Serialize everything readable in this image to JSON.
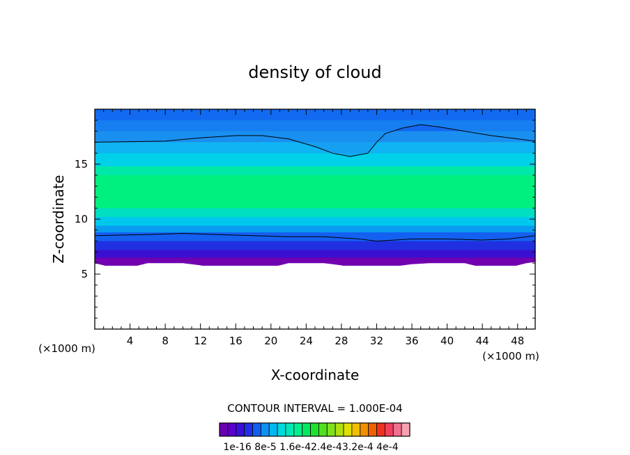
{
  "chart_data": {
    "type": "heatmap",
    "title": "density of cloud",
    "xlabel": "X-coordinate",
    "ylabel": "Z-coordinate",
    "x_unit": "(×1000 m)",
    "z_unit": "(×1000 m)",
    "xlim": [
      0,
      50
    ],
    "ylim": [
      0,
      20
    ],
    "x_ticks": [
      4,
      8,
      12,
      16,
      20,
      24,
      28,
      32,
      36,
      40,
      44,
      48
    ],
    "y_ticks": [
      5,
      10,
      15
    ],
    "contour_interval_text": "CONTOUR INTERVAL = 1.000E-04",
    "colorbar": {
      "labels": [
        "1e-16",
        "8e-5",
        "1.6e-4",
        "2.4e-4",
        "3.2e-4",
        "4e-4"
      ],
      "label_text": "1e-16  8e-5  1.6e-42.4e-43.2e-4  4e-4",
      "colors": [
        "#6b00b0",
        "#5a00c8",
        "#3a10d8",
        "#2030e8",
        "#1060f0",
        "#1090f0",
        "#00b8f0",
        "#00d8e0",
        "#00e8b8",
        "#00f090",
        "#00e860",
        "#20e030",
        "#50e020",
        "#80e020",
        "#b0e010",
        "#e0e000",
        "#f0c000",
        "#f09000",
        "#f06000",
        "#f03020",
        "#f04060",
        "#f07090",
        "#f8a0b0"
      ]
    },
    "bands": [
      {
        "z_top": 20,
        "z_bottom": 19.0,
        "color": "#0a3cf0"
      },
      {
        "z_top": 19.0,
        "z_bottom": 18.0,
        "color": "#1268f0"
      },
      {
        "z_top": 18.0,
        "z_bottom": 17.0,
        "color": "#1a8ff0"
      },
      {
        "z_top": 17.0,
        "z_bottom": 16.0,
        "color": "#10b4f2"
      },
      {
        "z_top": 16.0,
        "z_bottom": 14.8,
        "color": "#00d0e8"
      },
      {
        "z_top": 14.8,
        "z_bottom": 14.0,
        "color": "#00e8a8"
      },
      {
        "z_top": 14.0,
        "z_bottom": 11.0,
        "color": "#00f080"
      },
      {
        "z_top": 11.0,
        "z_bottom": 10.2,
        "color": "#00e0c0"
      },
      {
        "z_top": 10.2,
        "z_bottom": 9.4,
        "color": "#00c8ec"
      },
      {
        "z_top": 9.4,
        "z_bottom": 8.8,
        "color": "#0a9cf0"
      },
      {
        "z_top": 8.8,
        "z_bottom": 8.0,
        "color": "#1460f0"
      },
      {
        "z_top": 8.0,
        "z_bottom": 7.2,
        "color": "#2030e0"
      },
      {
        "z_top": 7.2,
        "z_bottom": 6.5,
        "color": "#3a10d0"
      },
      {
        "z_top": 6.5,
        "z_bottom": 5.8,
        "color": "#7000b0"
      }
    ],
    "upper_contour": [
      [
        0,
        17.0
      ],
      [
        4,
        17.05
      ],
      [
        8,
        17.1
      ],
      [
        12,
        17.4
      ],
      [
        16,
        17.6
      ],
      [
        19,
        17.6
      ],
      [
        22,
        17.3
      ],
      [
        25,
        16.6
      ],
      [
        27,
        16.0
      ],
      [
        29,
        15.7
      ],
      [
        31,
        16.0
      ],
      [
        32,
        17.0
      ],
      [
        33,
        17.8
      ],
      [
        35,
        18.3
      ],
      [
        37,
        18.6
      ],
      [
        39,
        18.4
      ],
      [
        42,
        18.0
      ],
      [
        45,
        17.6
      ],
      [
        48,
        17.3
      ],
      [
        50,
        17.1
      ]
    ],
    "lower_contour": [
      [
        0,
        8.5
      ],
      [
        3,
        8.55
      ],
      [
        6,
        8.6
      ],
      [
        10,
        8.7
      ],
      [
        14,
        8.6
      ],
      [
        18,
        8.5
      ],
      [
        22,
        8.4
      ],
      [
        26,
        8.4
      ],
      [
        30,
        8.2
      ],
      [
        32,
        8.0
      ],
      [
        36,
        8.2
      ],
      [
        40,
        8.2
      ],
      [
        44,
        8.1
      ],
      [
        47,
        8.2
      ],
      [
        50,
        8.5
      ]
    ],
    "cloud_base": [
      [
        0,
        6.0
      ],
      [
        1,
        5.8
      ],
      [
        2,
        5.6
      ],
      [
        3,
        5.5
      ],
      [
        4,
        5.6
      ],
      [
        5,
        5.8
      ],
      [
        6,
        6.0
      ],
      [
        8,
        6.0
      ],
      [
        10,
        6.0
      ],
      [
        12,
        5.8
      ],
      [
        13,
        5.6
      ],
      [
        14,
        5.6
      ],
      [
        15,
        5.5
      ],
      [
        16,
        5.4
      ],
      [
        17,
        5.3
      ],
      [
        18,
        5.4
      ],
      [
        19,
        5.5
      ],
      [
        20,
        5.6
      ],
      [
        21,
        5.8
      ],
      [
        22,
        6.0
      ],
      [
        24,
        6.0
      ],
      [
        26,
        6.0
      ],
      [
        27,
        5.9
      ],
      [
        28,
        5.8
      ],
      [
        29,
        5.6
      ],
      [
        30,
        5.5
      ],
      [
        31,
        5.4
      ],
      [
        32,
        5.5
      ],
      [
        33,
        5.6
      ],
      [
        34,
        5.7
      ],
      [
        35,
        5.8
      ],
      [
        36,
        5.9
      ],
      [
        38,
        6.0
      ],
      [
        40,
        6.0
      ],
      [
        42,
        6.0
      ],
      [
        43,
        5.8
      ],
      [
        44,
        5.6
      ],
      [
        45,
        5.4
      ],
      [
        46,
        5.5
      ],
      [
        47,
        5.6
      ],
      [
        48,
        5.8
      ],
      [
        49,
        6.0
      ],
      [
        50,
        6.1
      ]
    ]
  }
}
